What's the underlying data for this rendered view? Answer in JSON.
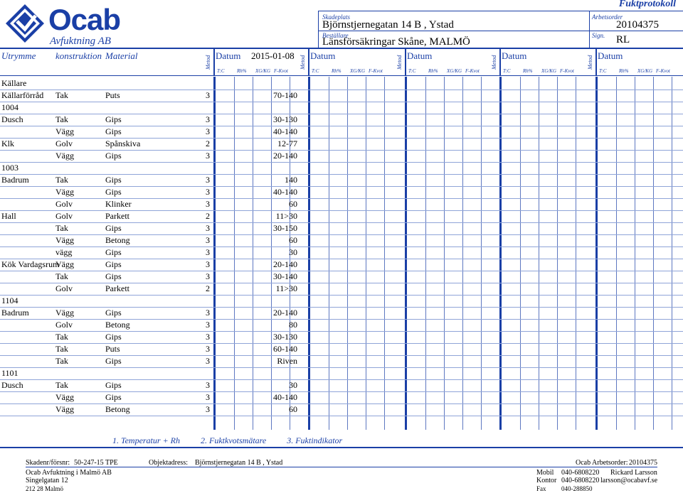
{
  "company": {
    "name": "Ocab",
    "subtitle": "Avfuktning AB"
  },
  "header": {
    "title": "Fuktprotokoll",
    "skadeplats_label": "Skadeplats",
    "skadeplats": "Björnstjernegatan 14 B , Ystad",
    "bestallare_label": "Beställare",
    "bestallare": "Länsförsäkringar Skåne, MALMÖ",
    "arbetsorder_label": "Arbetsorder",
    "arbetsorder": "20104375",
    "sign_label": "Sign.",
    "sign": "RL"
  },
  "columns": {
    "utrymme": "Utrymme",
    "konstruktion": "konstruktion",
    "material": "Material",
    "metod": "Metod",
    "datum": "Datum",
    "first_date": "2015-01-08",
    "sub": [
      "T:C",
      "Rh%",
      "XG/KG",
      "F-Kvot"
    ]
  },
  "rows": [
    {
      "type": "section",
      "label": "Källare"
    },
    {
      "type": "data",
      "utrymme": "Källarförråd",
      "konstruktion": "Tak",
      "material": "Puts",
      "metod": "3",
      "value": "70-140"
    },
    {
      "type": "section",
      "label": "1004"
    },
    {
      "type": "data",
      "utrymme": "Dusch",
      "konstruktion": "Tak",
      "material": "Gips",
      "metod": "3",
      "value": "30-130"
    },
    {
      "type": "data",
      "utrymme": "",
      "konstruktion": "Vägg",
      "material": "Gips",
      "metod": "3",
      "value": "40-140"
    },
    {
      "type": "data",
      "utrymme": "Klk",
      "konstruktion": "Golv",
      "material": "Spånskiva",
      "metod": "2",
      "value": "12-77"
    },
    {
      "type": "data",
      "utrymme": "",
      "konstruktion": "Vägg",
      "material": "Gips",
      "metod": "3",
      "value": "20-140"
    },
    {
      "type": "section",
      "label": "1003"
    },
    {
      "type": "data",
      "utrymme": "Badrum",
      "konstruktion": "Tak",
      "material": "Gips",
      "metod": "3",
      "value": "140"
    },
    {
      "type": "data",
      "utrymme": "",
      "konstruktion": "Vägg",
      "material": "Gips",
      "metod": "3",
      "value": "40-140"
    },
    {
      "type": "data",
      "utrymme": "",
      "konstruktion": "Golv",
      "material": "Klinker",
      "metod": "3",
      "value": "60"
    },
    {
      "type": "data",
      "utrymme": "Hall",
      "konstruktion": "Golv",
      "material": "Parkett",
      "metod": "2",
      "value": "11>30"
    },
    {
      "type": "data",
      "utrymme": "",
      "konstruktion": "Tak",
      "material": "Gips",
      "metod": "3",
      "value": "30-150"
    },
    {
      "type": "data",
      "utrymme": "",
      "konstruktion": "Vägg",
      "material": "Betong",
      "metod": "3",
      "value": "60"
    },
    {
      "type": "data",
      "utrymme": "",
      "konstruktion": "vägg",
      "material": "Gips",
      "metod": "3",
      "value": "30"
    },
    {
      "type": "data",
      "utrymme": "Kök Vardagsrum",
      "konstruktion": "Vägg",
      "material": "Gips",
      "metod": "3",
      "value": "20-140"
    },
    {
      "type": "data",
      "utrymme": "",
      "konstruktion": "Tak",
      "material": "Gips",
      "metod": "3",
      "value": "30-140"
    },
    {
      "type": "data",
      "utrymme": "",
      "konstruktion": "Golv",
      "material": "Parkett",
      "metod": "2",
      "value": "11>30"
    },
    {
      "type": "section",
      "label": "1104"
    },
    {
      "type": "data",
      "utrymme": "Badrum",
      "konstruktion": "Vägg",
      "material": "Gips",
      "metod": "3",
      "value": "20-140"
    },
    {
      "type": "data",
      "utrymme": "",
      "konstruktion": "Golv",
      "material": "Betong",
      "metod": "3",
      "value": "80"
    },
    {
      "type": "data",
      "utrymme": "",
      "konstruktion": "Tak",
      "material": "Gips",
      "metod": "3",
      "value": "30-130"
    },
    {
      "type": "data",
      "utrymme": "",
      "konstruktion": "Tak",
      "material": "Puts",
      "metod": "3",
      "value": "60-140"
    },
    {
      "type": "data",
      "utrymme": "",
      "konstruktion": "Tak",
      "material": "Gips",
      "metod": "3",
      "value": "Riven"
    },
    {
      "type": "section",
      "label": "1101"
    },
    {
      "type": "data",
      "utrymme": "Dusch",
      "konstruktion": "Tak",
      "material": "Gips",
      "metod": "3",
      "value": "30"
    },
    {
      "type": "data",
      "utrymme": "",
      "konstruktion": "Vägg",
      "material": "Gips",
      "metod": "3",
      "value": "40-140"
    },
    {
      "type": "data",
      "utrymme": "",
      "konstruktion": "Vägg",
      "material": "Betong",
      "metod": "3",
      "value": "60"
    }
  ],
  "legend": [
    "1. Temperatur + Rh",
    "2. Fuktkvotsmätare",
    "3. Fuktindikator"
  ],
  "footer": {
    "skadenr_label": "Skadenr/försnr:",
    "skadenr": "50-247-15 TPE",
    "objektadress_label": "Objektadress:",
    "objektadress": "Björnstjernegatan 14 B , Ystad",
    "arbetsorder_label": "Ocab Arbetsorder:",
    "arbetsorder": "20104375",
    "office": "Ocab Avfuktning i Malmö AB",
    "street": "Singelgatan 12",
    "zip": "212 28 Malmö",
    "mobil_label": "Mobil",
    "mobil": "040-6808220",
    "kontor_label": "Kontor",
    "kontor": "040-6808220",
    "fax_label": "Fax",
    "fax": "040-288850",
    "person": "Rickard Larsson",
    "email": "larsson@ocabavf.se"
  },
  "colors": {
    "accent": "#1a3fa6"
  }
}
